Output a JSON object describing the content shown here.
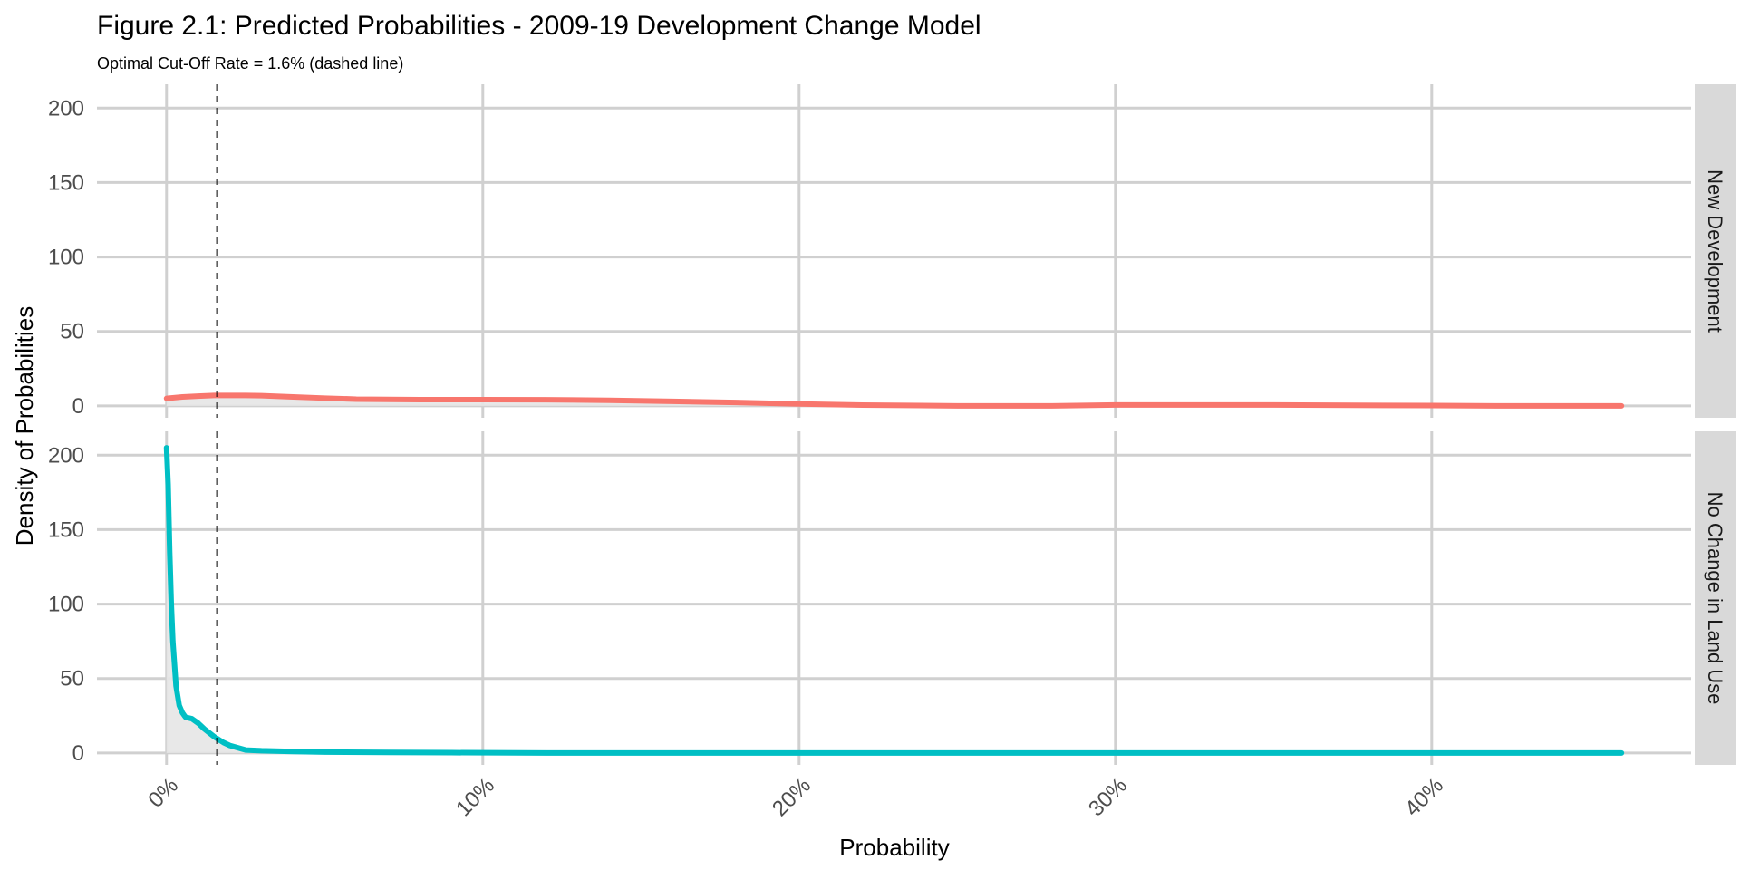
{
  "chart_data": {
    "type": "area",
    "title": "Figure 2.1: Predicted Probabilities - 2009-19 Development Change Model",
    "subtitle": "Optimal Cut-Off Rate = 1.6%  (dashed line)",
    "xlabel": "Probability",
    "ylabel": "Density of Probabilities",
    "xlim": [
      -0.022,
      0.482
    ],
    "ylim": [
      -8,
      216
    ],
    "x_ticks": [
      0,
      0.1,
      0.2,
      0.3,
      0.4
    ],
    "x_tick_labels": [
      "0%",
      "10%",
      "20%",
      "30%",
      "40%"
    ],
    "y_ticks": [
      0,
      50,
      100,
      150,
      200
    ],
    "y_tick_labels": [
      "0",
      "50",
      "100",
      "150",
      "200"
    ],
    "cutoff": 0.016,
    "grid": true,
    "legend": "none",
    "fill_color": "#e6e6e6",
    "grid_color": "#d0d0d0",
    "strip_color": "#d9d9d9",
    "panels": [
      {
        "label": "New Development",
        "color": "#F8766D",
        "x": [
          0,
          0.005,
          0.01,
          0.015,
          0.02,
          0.025,
          0.03,
          0.04,
          0.05,
          0.06,
          0.08,
          0.1,
          0.12,
          0.14,
          0.16,
          0.18,
          0.2,
          0.22,
          0.25,
          0.28,
          0.3,
          0.35,
          0.4,
          0.42,
          0.46
        ],
        "y": [
          5,
          6,
          6.5,
          7,
          7,
          7,
          6.8,
          6,
          5.2,
          4.5,
          4.2,
          4.2,
          4.1,
          3.7,
          3,
          2.3,
          1.3,
          0.5,
          0,
          0,
          0.6,
          0.6,
          0.2,
          0,
          0
        ]
      },
      {
        "label": "No Change in Land Use",
        "color": "#00BFC4",
        "x": [
          0,
          0.0005,
          0.001,
          0.0015,
          0.002,
          0.003,
          0.004,
          0.005,
          0.006,
          0.008,
          0.01,
          0.012,
          0.015,
          0.018,
          0.02,
          0.025,
          0.03,
          0.04,
          0.05,
          0.07,
          0.09,
          0.12,
          0.2,
          0.3,
          0.46
        ],
        "y": [
          205,
          180,
          135,
          100,
          75,
          45,
          32,
          27,
          24,
          23,
          20,
          16,
          11,
          7,
          5,
          2,
          1.5,
          1,
          0.6,
          0.4,
          0.2,
          0,
          0,
          0,
          0
        ]
      }
    ]
  }
}
